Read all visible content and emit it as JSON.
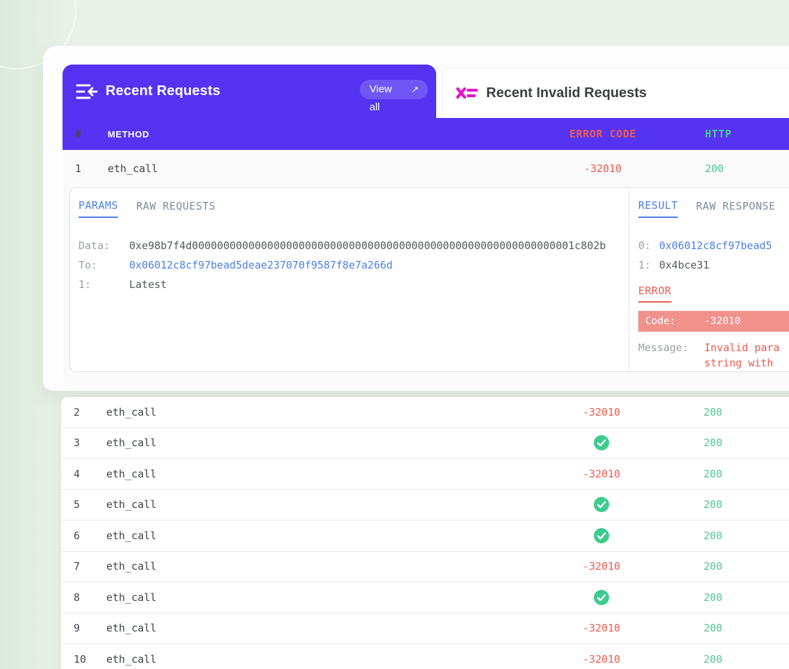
{
  "colors": {
    "purple": "#5434f2",
    "magenta": "#e616c6",
    "red": "#ef5a4f",
    "salmon": "#f0918b",
    "green_check": "#3ecb8e",
    "green_http": "#51c795",
    "blue_link": "#4d7fe8"
  },
  "widgets": {
    "recent_requests": {
      "title": "Recent Requests",
      "icon": "collapse-arrow-left-icon",
      "view_all": {
        "line1": "View",
        "line2": "all",
        "icon": "arrow-up-right-icon"
      }
    },
    "recent_invalid_requests": {
      "title": "Recent Invalid Requests",
      "icon": "invalid-cross-list-icon"
    }
  },
  "table": {
    "columns": [
      "#",
      "METHOD",
      "ERROR CODE",
      "HTTP"
    ],
    "rows": [
      {
        "num": "1",
        "method": "eth_call",
        "error_code": "-32010",
        "http": "200"
      },
      {
        "num": "2",
        "method": "eth_call",
        "error_code": "-32010",
        "http": "200"
      },
      {
        "num": "3",
        "method": "eth_call",
        "error_code": null,
        "ok": true,
        "http": "200"
      },
      {
        "num": "4",
        "method": "eth_call",
        "error_code": "-32010",
        "http": "200"
      },
      {
        "num": "5",
        "method": "eth_call",
        "error_code": null,
        "ok": true,
        "http": "200"
      },
      {
        "num": "6",
        "method": "eth_call",
        "error_code": null,
        "ok": true,
        "http": "200"
      },
      {
        "num": "7",
        "method": "eth_call",
        "error_code": "-32010",
        "http": "200"
      },
      {
        "num": "8",
        "method": "eth_call",
        "error_code": null,
        "ok": true,
        "http": "200"
      },
      {
        "num": "9",
        "method": "eth_call",
        "error_code": "-32010",
        "http": "200"
      },
      {
        "num": "10",
        "method": "eth_call",
        "error_code": "-32010",
        "http": "200"
      }
    ]
  },
  "detail": {
    "request": {
      "tabs": [
        "PARAMS",
        "RAW REQUESTS"
      ],
      "active_tab": "PARAMS",
      "fields": [
        {
          "label": "Data:",
          "value": "0xe98b7f4d0000000000000000000000000000000000000000000000000000000000001c802b",
          "kind": "plain"
        },
        {
          "label": "To:",
          "value": "0x06012c8cf97bead5deae237070f9587f8e7a266d",
          "kind": "link"
        },
        {
          "label": "1:",
          "value": "Latest",
          "kind": "plain"
        }
      ]
    },
    "response": {
      "tabs": [
        "RESULT",
        "RAW RESPONSE"
      ],
      "active_tab": "RESULT",
      "fields": [
        {
          "label": "0:",
          "value": "0x06012c8cf97bead5",
          "kind": "link"
        },
        {
          "label": "1:",
          "value": "0x4bce31",
          "kind": "plain"
        }
      ],
      "error": {
        "heading": "ERROR",
        "code_label": "Code:",
        "code_value": "-32010",
        "message_label": "Message:",
        "message_line1": "Invalid para",
        "message_line2": "string with"
      }
    }
  }
}
